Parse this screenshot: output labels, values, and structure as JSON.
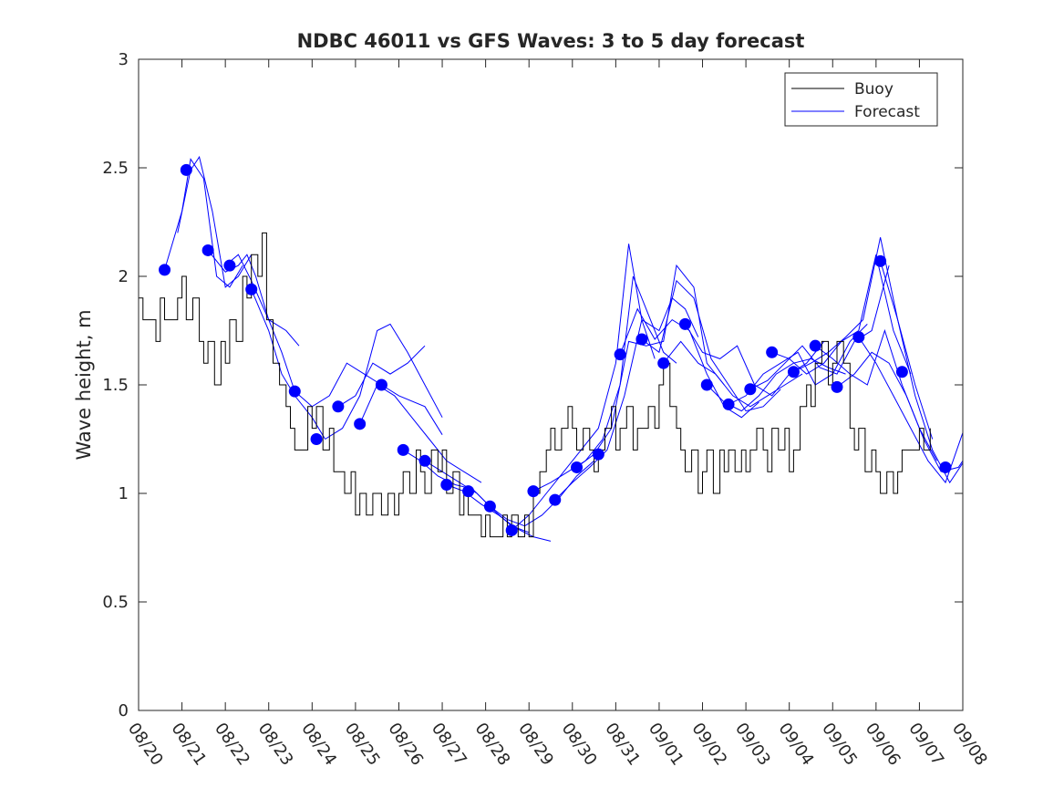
{
  "chart_data": {
    "type": "line",
    "title": "NDBC 46011 vs GFS Waves: 3 to 5 day forecast",
    "xlabel": "",
    "ylabel": "Wave height, m",
    "xlim": [
      0,
      19
    ],
    "ylim": [
      0,
      3
    ],
    "yticks": [
      0,
      0.5,
      1,
      1.5,
      2,
      2.5,
      3
    ],
    "ytick_labels": [
      "0",
      "0.5",
      "1",
      "1.5",
      "2",
      "2.5",
      "3"
    ],
    "xtick_labels": [
      "08/20",
      "08/21",
      "08/22",
      "08/23",
      "08/24",
      "08/25",
      "08/26",
      "08/27",
      "08/28",
      "08/29",
      "08/30",
      "08/31",
      "09/01",
      "09/02",
      "09/03",
      "09/04",
      "09/05",
      "09/06",
      "09/07",
      "09/08"
    ],
    "grid": false,
    "legend": {
      "location": "top-right",
      "entries": [
        "Buoy",
        "Forecast"
      ]
    },
    "colors": {
      "buoy": "#000000",
      "forecast": "#0000ff",
      "axes": "#262626",
      "background": "#ffffff"
    },
    "series": [
      {
        "name": "Buoy",
        "x": [
          0,
          0.1,
          0.25,
          0.4,
          0.5,
          0.6,
          0.75,
          0.9,
          1.0,
          1.1,
          1.25,
          1.4,
          1.5,
          1.6,
          1.75,
          1.9,
          2.0,
          2.1,
          2.25,
          2.4,
          2.5,
          2.6,
          2.75,
          2.85,
          2.95,
          3.1,
          3.25,
          3.4,
          3.5,
          3.6,
          3.75,
          3.9,
          4.0,
          4.1,
          4.25,
          4.4,
          4.5,
          4.6,
          4.75,
          4.9,
          5.0,
          5.1,
          5.25,
          5.4,
          5.5,
          5.6,
          5.75,
          5.9,
          6.0,
          6.1,
          6.25,
          6.4,
          6.5,
          6.6,
          6.75,
          6.9,
          7.0,
          7.1,
          7.25,
          7.4,
          7.5,
          7.6,
          7.75,
          7.9,
          8.0,
          8.1,
          8.25,
          8.4,
          8.5,
          8.6,
          8.75,
          8.9,
          9.0,
          9.1,
          9.25,
          9.4,
          9.5,
          9.6,
          9.75,
          9.9,
          10.0,
          10.1,
          10.25,
          10.4,
          10.5,
          10.6,
          10.75,
          10.9,
          11.0,
          11.1,
          11.25,
          11.4,
          11.5,
          11.6,
          11.75,
          11.9,
          12.0,
          12.1,
          12.25,
          12.4,
          12.5,
          12.6,
          12.75,
          12.9,
          13.0,
          13.1,
          13.25,
          13.4,
          13.5,
          13.6,
          13.75,
          13.9,
          14.0,
          14.1,
          14.25,
          14.4,
          14.5,
          14.6,
          14.75,
          14.9,
          15.0,
          15.1,
          15.25,
          15.4,
          15.5,
          15.6,
          15.75,
          15.9,
          16.0,
          16.1,
          16.25,
          16.4,
          16.5,
          16.6,
          16.75,
          16.9,
          17.0,
          17.1,
          17.25,
          17.4,
          17.5,
          17.6,
          17.75,
          17.9,
          18.0,
          18.1,
          18.25
        ],
        "values": [
          1.9,
          1.8,
          1.8,
          1.7,
          1.9,
          1.8,
          1.8,
          1.9,
          2.0,
          1.8,
          1.9,
          1.7,
          1.6,
          1.7,
          1.5,
          1.7,
          1.6,
          1.8,
          1.7,
          2.0,
          1.9,
          2.1,
          2.0,
          2.2,
          1.8,
          1.6,
          1.5,
          1.4,
          1.3,
          1.2,
          1.2,
          1.4,
          1.3,
          1.4,
          1.2,
          1.3,
          1.1,
          1.1,
          1.0,
          1.1,
          0.9,
          1.0,
          0.9,
          1.0,
          1.0,
          0.9,
          1.0,
          0.9,
          1.0,
          1.1,
          1.0,
          1.2,
          1.1,
          1.0,
          1.2,
          1.1,
          1.2,
          1.0,
          1.1,
          0.9,
          1.0,
          0.9,
          0.9,
          0.8,
          0.9,
          0.8,
          0.8,
          0.9,
          0.8,
          0.9,
          0.8,
          0.9,
          0.8,
          1.0,
          1.1,
          1.2,
          1.3,
          1.2,
          1.3,
          1.4,
          1.3,
          1.2,
          1.3,
          1.2,
          1.1,
          1.2,
          1.3,
          1.4,
          1.2,
          1.3,
          1.4,
          1.2,
          1.3,
          1.3,
          1.4,
          1.3,
          1.5,
          1.6,
          1.4,
          1.3,
          1.2,
          1.1,
          1.2,
          1.0,
          1.1,
          1.2,
          1.0,
          1.2,
          1.1,
          1.2,
          1.1,
          1.2,
          1.1,
          1.2,
          1.3,
          1.2,
          1.1,
          1.3,
          1.2,
          1.3,
          1.1,
          1.2,
          1.4,
          1.5,
          1.4,
          1.6,
          1.7,
          1.5,
          1.6,
          1.7,
          1.6,
          1.3,
          1.2,
          1.3,
          1.1,
          1.2,
          1.1,
          1.0,
          1.1,
          1.0,
          1.1,
          1.2,
          1.2,
          1.2,
          1.3,
          1.2,
          1.3
        ]
      },
      {
        "name": "Forecast",
        "segments": [
          {
            "x": [
              0.6,
              1.0,
              1.2,
              1.5,
              1.8,
              2.1,
              2.4
            ],
            "values": [
              2.03,
              2.3,
              2.54,
              2.45,
              2.0,
              1.95,
              2.05
            ]
          },
          {
            "x": [
              0.9,
              1.2,
              1.4,
              1.7,
              2.0,
              2.3,
              2.6
            ],
            "values": [
              2.2,
              2.49,
              2.55,
              2.3,
              1.95,
              2.0,
              2.1
            ]
          },
          {
            "x": [
              1.6,
              2.0,
              2.3,
              2.5,
              2.7,
              3.0,
              3.3,
              3.6
            ],
            "values": [
              2.12,
              2.02,
              2.05,
              2.1,
              2.0,
              1.8,
              1.65,
              1.47
            ]
          },
          {
            "x": [
              2.0,
              2.3,
              2.6,
              3.0,
              3.4,
              3.7
            ],
            "values": [
              2.05,
              2.1,
              1.98,
              1.8,
              1.75,
              1.68
            ]
          },
          {
            "x": [
              2.6,
              3.0,
              3.3,
              3.6,
              4.0,
              4.3
            ],
            "values": [
              1.94,
              1.75,
              1.55,
              1.45,
              1.35,
              1.25
            ]
          },
          {
            "x": [
              3.6,
              4.0,
              4.4,
              4.8,
              5.2,
              5.6,
              6.0,
              6.6,
              7.0
            ],
            "values": [
              1.47,
              1.4,
              1.45,
              1.6,
              1.55,
              1.5,
              1.45,
              1.4,
              1.27
            ]
          },
          {
            "x": [
              4.3,
              4.7,
              5.1,
              5.5,
              5.8,
              6.2,
              6.6,
              7.0
            ],
            "values": [
              1.25,
              1.3,
              1.45,
              1.75,
              1.78,
              1.65,
              1.5,
              1.35
            ]
          },
          {
            "x": [
              4.6,
              5.0,
              5.4,
              5.8,
              6.2,
              6.6
            ],
            "values": [
              1.4,
              1.45,
              1.6,
              1.55,
              1.6,
              1.68
            ]
          },
          {
            "x": [
              5.1,
              5.5,
              5.9,
              6.3,
              6.7,
              7.1,
              7.5,
              7.9
            ],
            "values": [
              1.32,
              1.5,
              1.45,
              1.35,
              1.25,
              1.15,
              1.1,
              1.05
            ]
          },
          {
            "x": [
              6.1,
              6.5,
              6.9,
              7.3,
              7.7,
              8.1
            ],
            "values": [
              1.2,
              1.15,
              1.08,
              1.04,
              1.02,
              0.94
            ]
          },
          {
            "x": [
              6.6,
              7.0,
              7.4,
              7.8,
              8.2,
              8.6,
              9.0
            ],
            "values": [
              1.15,
              1.1,
              1.05,
              1.0,
              0.92,
              0.85,
              0.82
            ]
          },
          {
            "x": [
              7.1,
              7.5,
              7.9,
              8.3,
              8.7,
              9.1,
              9.5
            ],
            "values": [
              1.04,
              1.01,
              0.95,
              0.9,
              0.84,
              0.8,
              0.78
            ]
          },
          {
            "x": [
              8.1,
              8.5,
              8.9,
              9.3,
              9.7,
              10.1,
              10.5
            ],
            "values": [
              0.94,
              0.88,
              0.85,
              0.9,
              0.98,
              1.08,
              1.15
            ]
          },
          {
            "x": [
              8.6,
              9.0,
              9.4,
              9.8,
              10.2,
              10.6,
              11.0,
              11.3,
              11.6,
              11.9
            ],
            "values": [
              0.83,
              0.9,
              1.0,
              1.1,
              1.2,
              1.3,
              1.6,
              2.15,
              1.8,
              1.62
            ]
          },
          {
            "x": [
              9.1,
              9.5,
              9.9,
              10.3,
              10.7,
              11.1,
              11.4,
              11.8,
              12.1,
              12.4
            ],
            "values": [
              1.01,
              1.05,
              1.1,
              1.15,
              1.25,
              1.5,
              2.0,
              1.8,
              1.65,
              1.6
            ]
          },
          {
            "x": [
              9.6,
              10.0,
              10.4,
              10.8,
              11.2,
              11.6,
              12.0,
              12.3,
              12.6,
              12.9
            ],
            "values": [
              0.97,
              1.05,
              1.12,
              1.2,
              1.45,
              1.8,
              1.75,
              1.9,
              1.85,
              1.72
            ]
          },
          {
            "x": [
              10.1,
              10.5,
              10.9,
              11.3,
              11.7,
              12.1,
              12.4,
              12.8,
              13.1,
              13.5
            ],
            "values": [
              1.12,
              1.18,
              1.3,
              1.7,
              1.68,
              1.7,
              2.05,
              1.95,
              1.6,
              1.5
            ]
          },
          {
            "x": [
              11.1,
              11.5,
              11.9,
              12.3,
              12.7,
              13.1,
              13.5,
              13.9,
              14.3
            ],
            "values": [
              1.64,
              1.85,
              1.71,
              1.8,
              1.75,
              1.55,
              1.4,
              1.35,
              1.42
            ]
          },
          {
            "x": [
              11.6,
              12.0,
              12.4,
              12.8,
              13.2,
              13.6,
              14.0,
              14.4,
              14.8
            ],
            "values": [
              1.71,
              1.65,
              1.98,
              1.9,
              1.62,
              1.5,
              1.38,
              1.4,
              1.48
            ]
          },
          {
            "x": [
              12.1,
              12.5,
              12.9,
              13.3,
              13.7,
              14.1,
              14.5,
              14.9,
              15.3
            ],
            "values": [
              1.6,
              1.7,
              1.6,
              1.55,
              1.45,
              1.4,
              1.45,
              1.5,
              1.55
            ]
          },
          {
            "x": [
              12.6,
              13.0,
              13.4,
              13.8,
              14.2,
              14.6,
              15.0,
              15.4,
              15.8
            ],
            "values": [
              1.78,
              1.65,
              1.62,
              1.68,
              1.5,
              1.45,
              1.55,
              1.6,
              1.7
            ]
          },
          {
            "x": [
              13.1,
              13.5,
              13.9,
              14.3,
              14.7,
              15.1,
              15.5,
              15.9,
              16.3
            ],
            "values": [
              1.5,
              1.42,
              1.38,
              1.45,
              1.55,
              1.6,
              1.62,
              1.58,
              1.55
            ]
          },
          {
            "x": [
              13.6,
              14.0,
              14.4,
              14.8,
              15.2,
              15.6,
              16.0,
              16.4,
              16.8
            ],
            "values": [
              1.41,
              1.45,
              1.55,
              1.6,
              1.65,
              1.5,
              1.55,
              1.7,
              1.78
            ]
          },
          {
            "x": [
              14.1,
              14.5,
              14.9,
              15.3,
              15.7,
              16.1,
              16.5,
              16.9,
              17.3
            ],
            "values": [
              1.48,
              1.52,
              1.6,
              1.68,
              1.58,
              1.55,
              1.7,
              1.75,
              2.05
            ]
          },
          {
            "x": [
              14.6,
              15.0,
              15.4,
              15.8,
              16.2,
              16.6,
              17.0,
              17.4,
              17.8
            ],
            "values": [
              1.65,
              1.62,
              1.55,
              1.6,
              1.7,
              1.75,
              2.1,
              1.75,
              1.55
            ]
          },
          {
            "x": [
              15.1,
              15.5,
              15.9,
              16.3,
              16.7,
              17.1,
              17.5,
              17.9,
              18.3
            ],
            "values": [
              1.56,
              1.6,
              1.65,
              1.72,
              1.8,
              2.18,
              1.8,
              1.5,
              1.25
            ]
          },
          {
            "x": [
              15.6,
              16.0,
              16.4,
              16.8,
              17.2,
              17.6,
              18.0,
              18.4
            ],
            "values": [
              1.68,
              1.62,
              1.55,
              1.5,
              1.75,
              1.5,
              1.3,
              1.15
            ]
          },
          {
            "x": [
              16.1,
              16.5,
              16.9,
              17.3,
              17.7,
              18.1,
              18.5,
              18.9,
              19.0
            ],
            "values": [
              1.49,
              1.55,
              1.65,
              1.6,
              1.45,
              1.25,
              1.1,
              1.12,
              1.15
            ]
          },
          {
            "x": [
              16.6,
              17.0,
              17.4,
              17.8,
              18.2,
              18.6,
              19.0
            ],
            "values": [
              1.72,
              1.6,
              1.45,
              1.3,
              1.15,
              1.05,
              1.28
            ]
          },
          {
            "x": [
              17.1,
              17.5,
              17.9,
              18.3,
              18.7,
              19.0
            ],
            "values": [
              2.07,
              1.8,
              1.45,
              1.2,
              1.05,
              1.14
            ]
          }
        ],
        "markers": {
          "x": [
            0.6,
            1.1,
            1.6,
            2.1,
            2.6,
            3.6,
            4.1,
            4.6,
            5.1,
            5.6,
            6.1,
            6.6,
            7.1,
            7.6,
            8.1,
            8.6,
            9.1,
            9.6,
            10.1,
            10.6,
            11.1,
            11.6,
            12.1,
            12.6,
            13.1,
            13.6,
            14.1,
            14.6,
            15.1,
            15.6,
            16.1,
            16.6,
            17.1,
            17.6,
            18.6
          ],
          "values": [
            2.03,
            2.49,
            2.12,
            2.05,
            1.94,
            1.47,
            1.25,
            1.4,
            1.32,
            1.5,
            1.2,
            1.15,
            1.04,
            1.01,
            0.94,
            0.83,
            1.01,
            0.97,
            1.12,
            1.18,
            1.64,
            1.71,
            1.6,
            1.78,
            1.5,
            1.41,
            1.48,
            1.65,
            1.56,
            1.68,
            1.49,
            1.72,
            2.07,
            1.56,
            1.12
          ]
        }
      }
    ]
  }
}
